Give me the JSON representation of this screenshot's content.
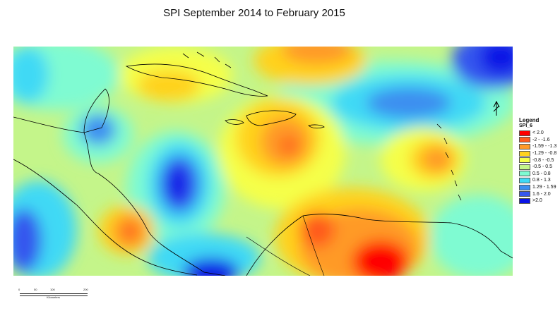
{
  "title": "SPI September 2014 to February 2015",
  "legend": {
    "title": "Legend",
    "layer": "SPI_6",
    "classes": [
      {
        "label": "< 2.0",
        "color": "#ff0000"
      },
      {
        "label": "-2 - -1.6",
        "color": "#ff5a1e"
      },
      {
        "label": "-1.59 - -1.3",
        "color": "#ff9a28"
      },
      {
        "label": "-1.29 - -0.8",
        "color": "#ffd21e"
      },
      {
        "label": "-0.8 - -0.5",
        "color": "#f5ff4a"
      },
      {
        "label": "-0.5 - 0.5",
        "color": "#c4f58a"
      },
      {
        "label": "0.5 - 0.8",
        "color": "#7ffbd2"
      },
      {
        "label": "0.8 - 1.3",
        "color": "#3fd9f5"
      },
      {
        "label": "1.29 - 1.59",
        "color": "#3c8ef0"
      },
      {
        "label": "1.6 - 2.0",
        "color": "#3656ee"
      },
      {
        "label": ">2.0",
        "color": "#0a14e6"
      }
    ]
  },
  "north_arrow": {
    "label": "N",
    "icon": "north-arrow-icon"
  },
  "scale_bar": {
    "ticks": [
      "0",
      "50",
      "100",
      "200"
    ],
    "unit": "Kilometers"
  }
}
